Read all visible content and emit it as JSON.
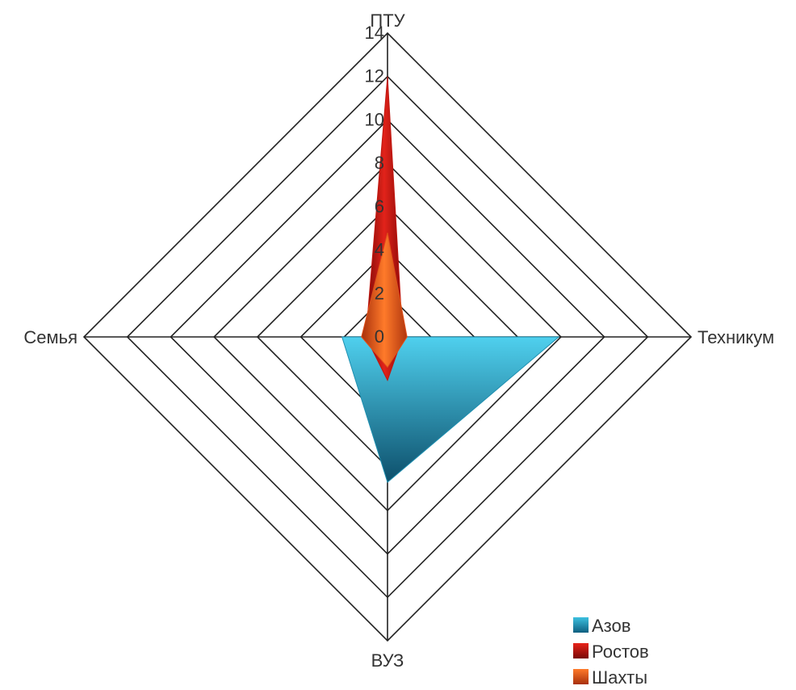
{
  "chart_data": {
    "type": "radar",
    "axes": [
      "ПТУ",
      "Техникум",
      "ВУЗ",
      "Семья"
    ],
    "rlim": [
      0,
      14
    ],
    "ticks": [
      "0",
      "2",
      "4",
      "6",
      "8",
      "10",
      "12",
      "14"
    ],
    "series": [
      {
        "name": "Азов",
        "values": [
          0,
          7.9,
          6.7,
          2.1
        ],
        "color": "#1e8fb0"
      },
      {
        "name": "Ростов",
        "values": [
          12.0,
          0.7,
          2.0,
          1.0
        ],
        "color": "#c0160f"
      },
      {
        "name": "Шахты",
        "values": [
          4.8,
          0.9,
          1.4,
          1.2
        ],
        "color": "#e0501a"
      }
    ],
    "grid": true,
    "legend_position": "bottom-right"
  }
}
